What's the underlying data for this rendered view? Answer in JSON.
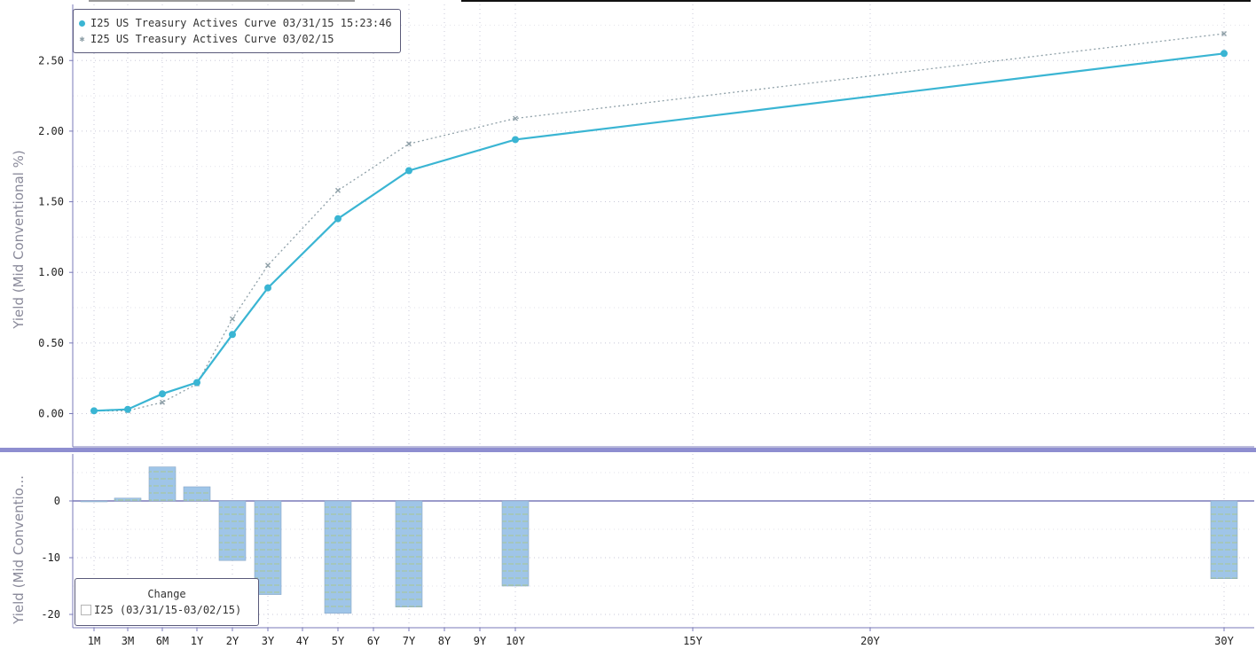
{
  "chart_data": [
    {
      "type": "line",
      "ylabel": "Yield (Mid Conventional %)",
      "ylim": [
        -0.12,
        2.86
      ],
      "yticks": [
        "0.00",
        "0.50",
        "1.00",
        "1.50",
        "2.00",
        "2.50"
      ],
      "ytick_values": [
        0,
        0.5,
        1.0,
        1.5,
        2.0,
        2.5
      ],
      "x_categories": [
        "1M",
        "3M",
        "6M",
        "1Y",
        "2Y",
        "3Y",
        "4Y",
        "5Y",
        "6Y",
        "7Y",
        "8Y",
        "9Y",
        "10Y",
        "15Y",
        "20Y",
        "30Y"
      ],
      "grid": true,
      "legend_placement": "top-left",
      "series": [
        {
          "name": "I25 US Treasury Actives Curve 03/31/15 15:23:46",
          "color": "#3ab5d3",
          "marker": "circle",
          "style": "solid",
          "x": [
            "1M",
            "3M",
            "6M",
            "1Y",
            "2Y",
            "3Y",
            "5Y",
            "7Y",
            "10Y",
            "30Y"
          ],
          "values": [
            0.02,
            0.03,
            0.14,
            0.22,
            0.56,
            0.89,
            1.38,
            1.72,
            1.94,
            2.55
          ]
        },
        {
          "name": "I25 US Treasury Actives Curve 03/02/15",
          "color": "#8fa0a8",
          "marker": "x",
          "style": "dotted",
          "x": [
            "1M",
            "3M",
            "6M",
            "1Y",
            "2Y",
            "3Y",
            "5Y",
            "7Y",
            "10Y",
            "30Y"
          ],
          "values": [
            0.02,
            0.02,
            0.08,
            0.21,
            0.67,
            1.05,
            1.58,
            1.91,
            2.09,
            2.69
          ]
        }
      ]
    },
    {
      "type": "bar",
      "ylabel": "Yield (Mid Conventio...",
      "ylim": [
        -21,
        9
      ],
      "yticks": [
        "0",
        "-10",
        "-20"
      ],
      "ytick_values": [
        0,
        -10,
        -20
      ],
      "grid": true,
      "legend_placement": "bottom-left",
      "legend_title": "Change",
      "series": [
        {
          "name": "I25 (03/31/15-03/02/15)",
          "color": "#9fc5e8",
          "x": [
            "1M",
            "3M",
            "6M",
            "1Y",
            "2Y",
            "3Y",
            "5Y",
            "7Y",
            "10Y",
            "30Y"
          ],
          "values": [
            0,
            0.5,
            6,
            2.5,
            -10.5,
            -16.5,
            -19.8,
            -18.7,
            -15,
            -13.7
          ]
        }
      ]
    }
  ]
}
